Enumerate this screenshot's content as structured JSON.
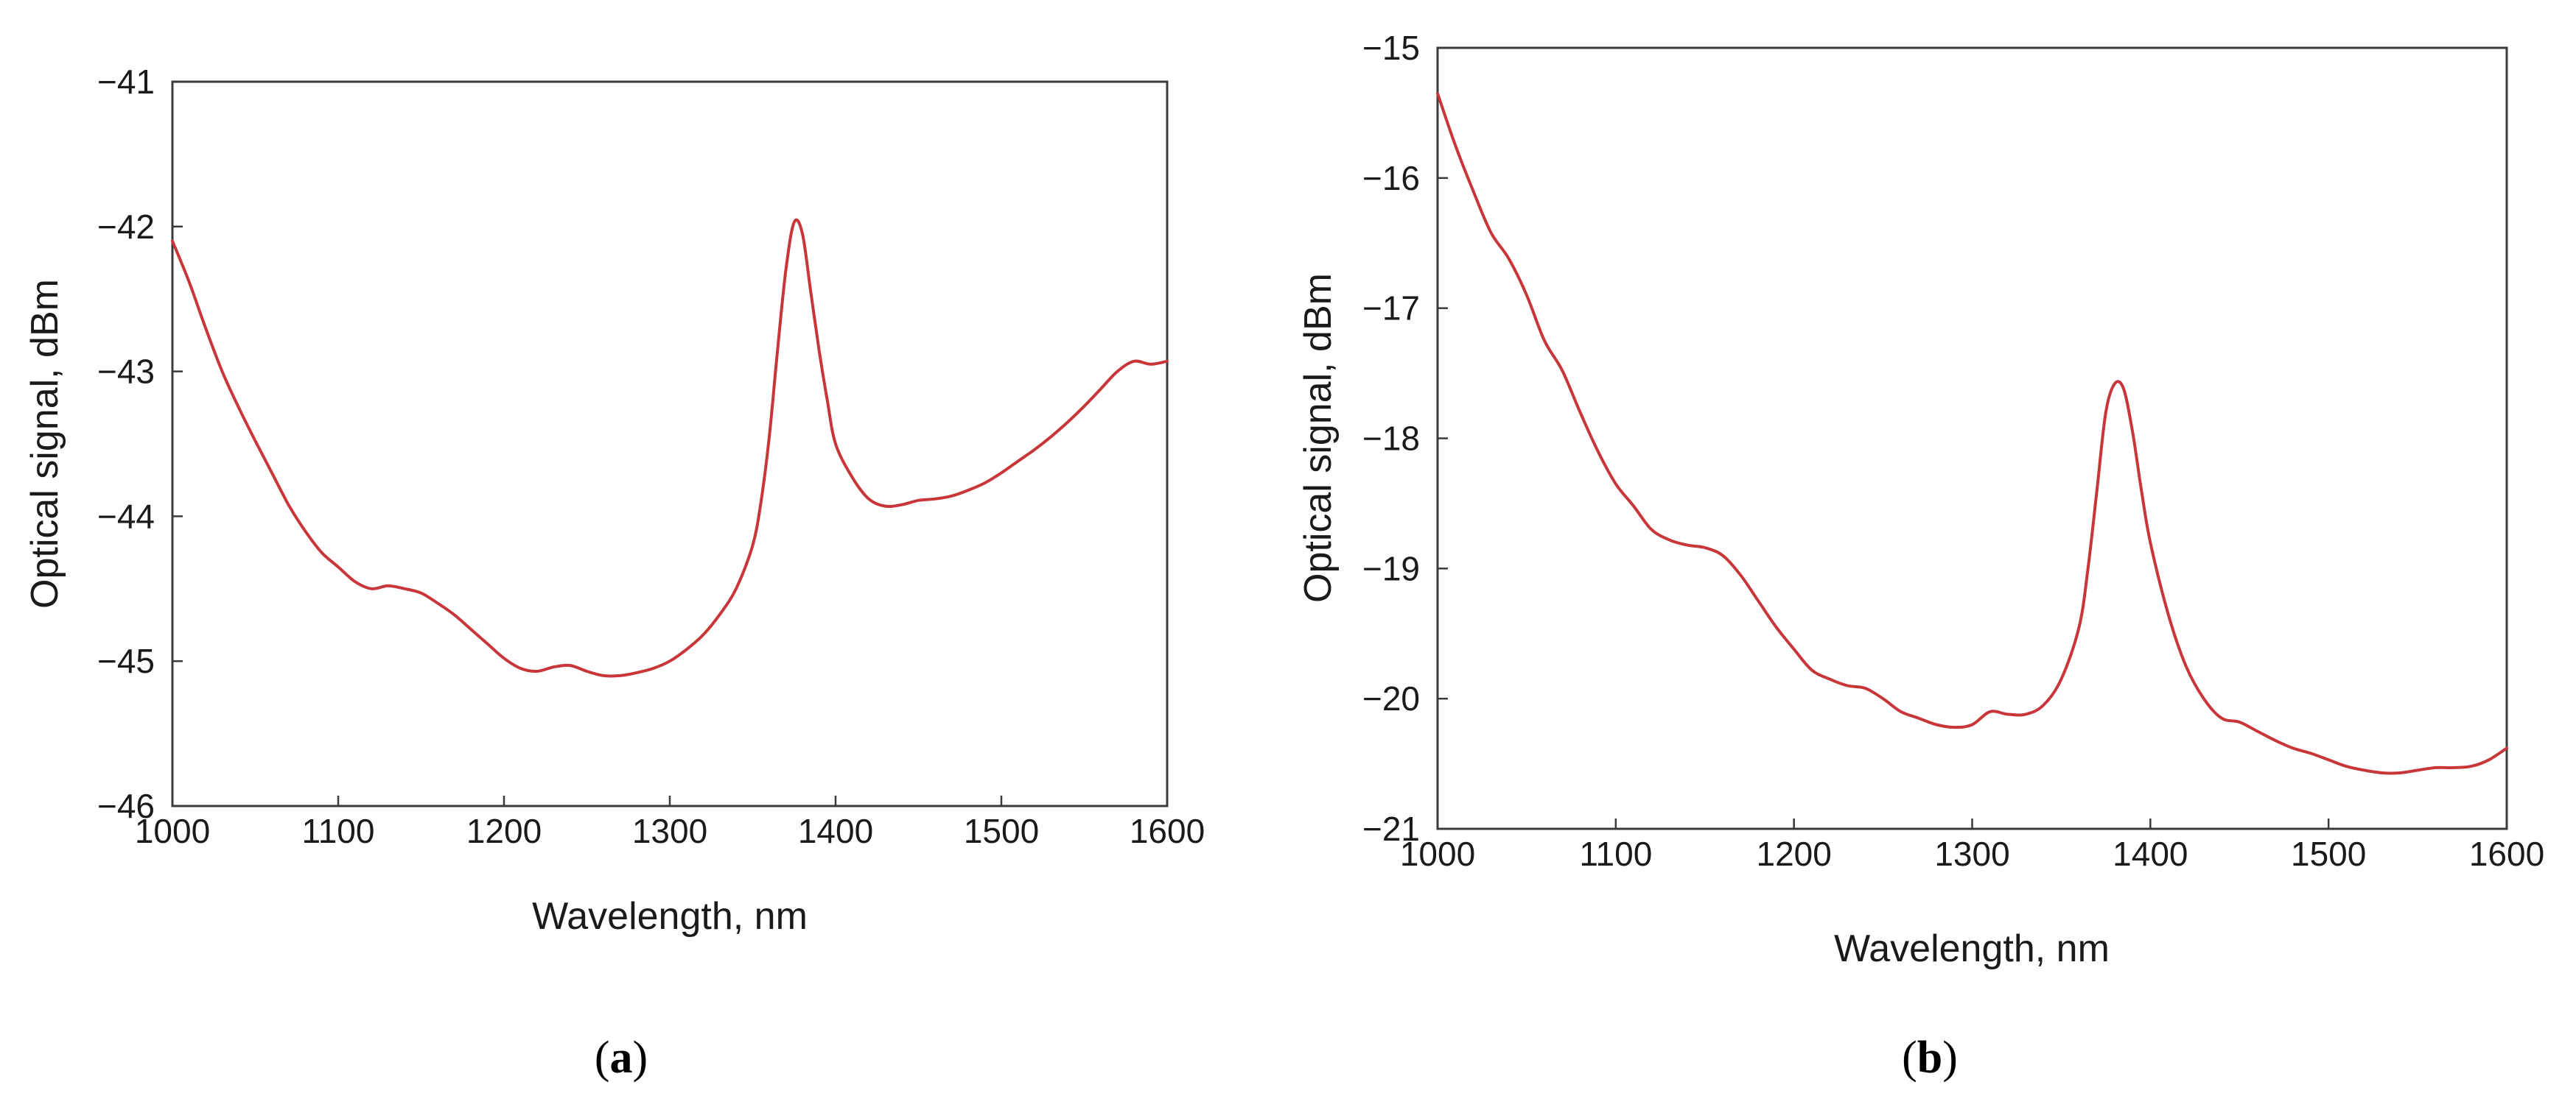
{
  "chart_data": [
    {
      "type": "line",
      "panel": "a",
      "title": "",
      "xlabel": "Wavelength, nm",
      "ylabel": "Optical signal, dBm",
      "xlim": [
        1000,
        1600
      ],
      "ylim": [
        -46,
        -41
      ],
      "x_ticks": [
        1000,
        1100,
        1200,
        1300,
        1400,
        1500,
        1600
      ],
      "y_ticks": [
        -41,
        -42,
        -43,
        -44,
        -45,
        -46
      ],
      "x_tick_labels": [
        "1000",
        "1100",
        "1200",
        "1300",
        "1400",
        "1500",
        "1600"
      ],
      "y_tick_labels": [
        "−41",
        "−42",
        "−43",
        "−44",
        "−45",
        "−46"
      ],
      "grid": false,
      "series": [
        {
          "name": "spectrum",
          "color": "#c8363a",
          "x": [
            1000,
            1010,
            1020,
            1030,
            1040,
            1050,
            1060,
            1070,
            1080,
            1090,
            1100,
            1110,
            1120,
            1130,
            1140,
            1150,
            1160,
            1170,
            1180,
            1190,
            1200,
            1210,
            1220,
            1230,
            1240,
            1250,
            1260,
            1270,
            1280,
            1290,
            1300,
            1310,
            1320,
            1330,
            1340,
            1350,
            1355,
            1360,
            1365,
            1370,
            1375,
            1380,
            1385,
            1390,
            1395,
            1400,
            1410,
            1420,
            1430,
            1440,
            1450,
            1460,
            1470,
            1480,
            1490,
            1500,
            1510,
            1520,
            1530,
            1540,
            1550,
            1560,
            1570,
            1580,
            1590,
            1600
          ],
          "y": [
            -42.1,
            -42.38,
            -42.7,
            -43.0,
            -43.25,
            -43.48,
            -43.7,
            -43.92,
            -44.1,
            -44.25,
            -44.35,
            -44.45,
            -44.5,
            -44.48,
            -44.5,
            -44.53,
            -44.6,
            -44.68,
            -44.78,
            -44.88,
            -44.98,
            -45.05,
            -45.07,
            -45.04,
            -45.03,
            -45.07,
            -45.1,
            -45.1,
            -45.08,
            -45.05,
            -45.0,
            -44.92,
            -44.82,
            -44.68,
            -44.5,
            -44.2,
            -43.9,
            -43.45,
            -42.85,
            -42.3,
            -41.97,
            -42.05,
            -42.45,
            -42.85,
            -43.2,
            -43.5,
            -43.73,
            -43.88,
            -43.93,
            -43.92,
            -43.89,
            -43.88,
            -43.86,
            -43.82,
            -43.77,
            -43.7,
            -43.62,
            -43.54,
            -43.45,
            -43.35,
            -43.24,
            -43.12,
            -43.0,
            -42.93,
            -42.95,
            -42.93
          ],
          "x_dense_note": "values sampled along the curve"
        }
      ]
    },
    {
      "type": "line",
      "panel": "b",
      "title": "",
      "xlabel": "Wavelength, nm",
      "ylabel": "Optical signal, dBm",
      "xlim": [
        1000,
        1600
      ],
      "ylim": [
        -21,
        -15
      ],
      "x_ticks": [
        1000,
        1100,
        1200,
        1300,
        1400,
        1500,
        1600
      ],
      "y_ticks": [
        -15,
        -16,
        -17,
        -18,
        -19,
        -20,
        -21
      ],
      "x_tick_labels": [
        "1000",
        "1100",
        "1200",
        "1300",
        "1400",
        "1500",
        "1600"
      ],
      "y_tick_labels": [
        "−15",
        "−16",
        "−17",
        "−18",
        "−19",
        "−20",
        "−21"
      ],
      "grid": false,
      "series": [
        {
          "name": "spectrum",
          "color": "#c8363a",
          "x": [
            1000,
            1010,
            1020,
            1030,
            1040,
            1050,
            1060,
            1070,
            1080,
            1090,
            1100,
            1110,
            1120,
            1130,
            1140,
            1150,
            1160,
            1170,
            1180,
            1190,
            1200,
            1210,
            1220,
            1230,
            1240,
            1250,
            1260,
            1270,
            1280,
            1290,
            1300,
            1310,
            1320,
            1330,
            1340,
            1350,
            1360,
            1365,
            1370,
            1375,
            1380,
            1385,
            1390,
            1395,
            1400,
            1410,
            1420,
            1430,
            1440,
            1450,
            1460,
            1470,
            1480,
            1490,
            1500,
            1510,
            1520,
            1530,
            1540,
            1550,
            1560,
            1570,
            1580,
            1590,
            1600
          ],
          "y": [
            -15.35,
            -15.75,
            -16.1,
            -16.42,
            -16.62,
            -16.9,
            -17.25,
            -17.48,
            -17.8,
            -18.1,
            -18.35,
            -18.52,
            -18.7,
            -18.78,
            -18.82,
            -18.84,
            -18.9,
            -19.05,
            -19.25,
            -19.45,
            -19.62,
            -19.78,
            -19.85,
            -19.9,
            -19.92,
            -20.0,
            -20.1,
            -20.15,
            -20.2,
            -20.22,
            -20.2,
            -20.1,
            -20.12,
            -20.12,
            -20.05,
            -19.85,
            -19.45,
            -19.0,
            -18.4,
            -17.8,
            -17.58,
            -17.62,
            -17.95,
            -18.4,
            -18.8,
            -19.35,
            -19.75,
            -20.0,
            -20.15,
            -20.18,
            -20.25,
            -20.32,
            -20.38,
            -20.42,
            -20.47,
            -20.52,
            -20.55,
            -20.57,
            -20.57,
            -20.55,
            -20.53,
            -20.53,
            -20.52,
            -20.47,
            -20.38
          ]
        }
      ]
    }
  ],
  "panels": {
    "a": {
      "label_open": "(",
      "label_letter": "a",
      "label_close": ")"
    },
    "b": {
      "label_open": "(",
      "label_letter": "b",
      "label_close": ")"
    }
  }
}
